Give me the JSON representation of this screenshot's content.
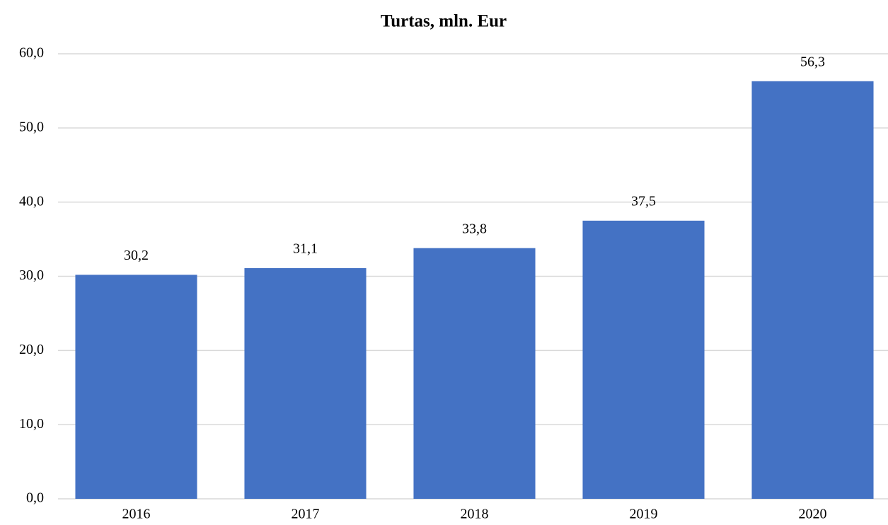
{
  "chart_data": {
    "type": "bar",
    "title": "Turtas, mln. Eur",
    "categories": [
      "2016",
      "2017",
      "2018",
      "2019",
      "2020"
    ],
    "values": [
      30.2,
      31.1,
      33.8,
      37.5,
      56.3
    ],
    "value_labels": [
      "30,2",
      "31,1",
      "33,8",
      "37,5",
      "56,3"
    ],
    "color": "#4472c4",
    "ylim": [
      0,
      60
    ],
    "yticks": [
      {
        "value": 0,
        "label": "0,0"
      },
      {
        "value": 10,
        "label": "10,0"
      },
      {
        "value": 20,
        "label": "20,0"
      },
      {
        "value": 30,
        "label": "30,0"
      },
      {
        "value": 40,
        "label": "40,0"
      },
      {
        "value": 50,
        "label": "50,0"
      },
      {
        "value": 60,
        "label": "60,0"
      }
    ],
    "grid": true
  }
}
